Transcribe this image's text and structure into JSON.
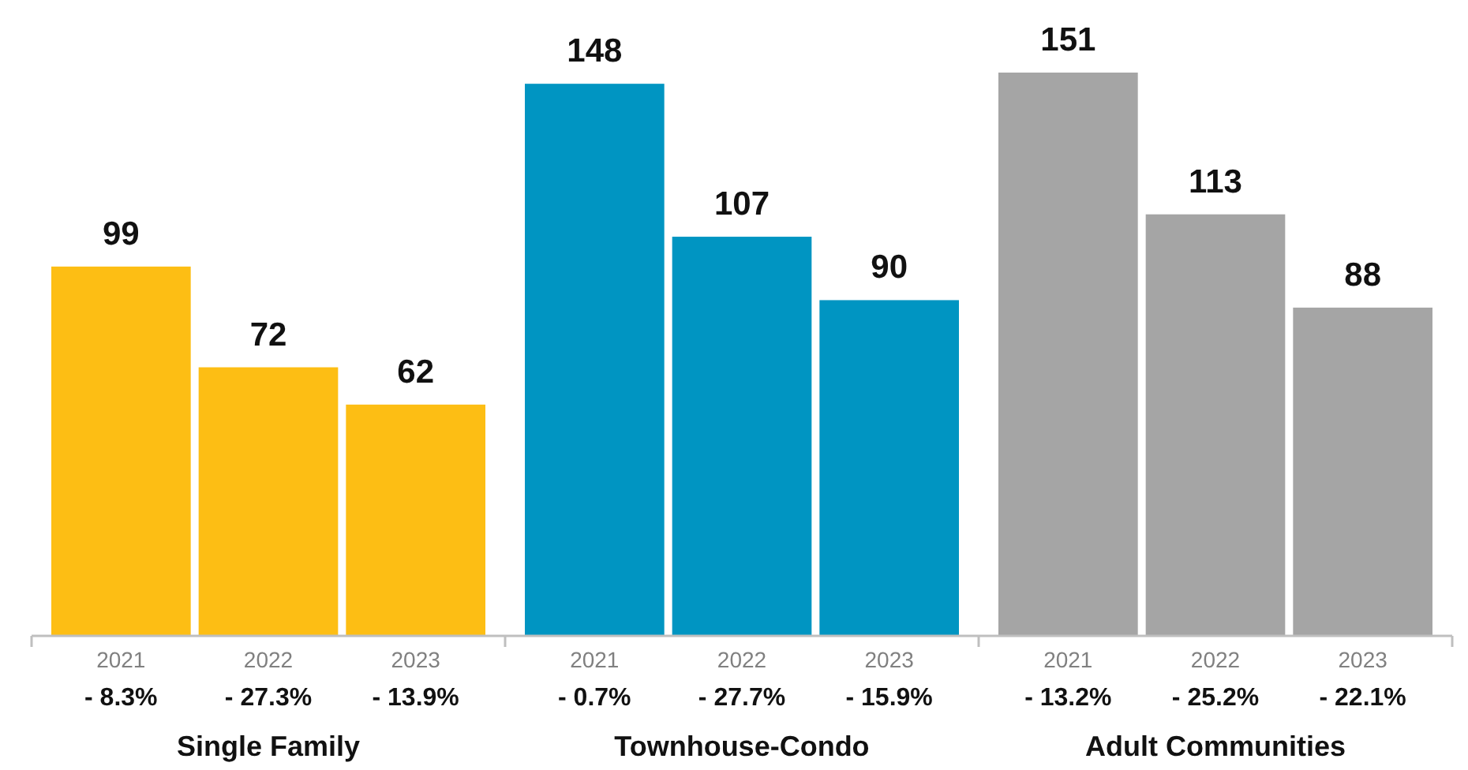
{
  "chart_data": {
    "type": "bar",
    "categories": [
      "2021",
      "2022",
      "2023",
      "2021",
      "2022",
      "2023",
      "2021",
      "2022",
      "2023"
    ],
    "values": [
      99,
      72,
      62,
      148,
      107,
      90,
      151,
      113,
      88
    ],
    "colors": [
      "#fdbe14",
      "#fdbe14",
      "#fdbe14",
      "#0095c2",
      "#0095c2",
      "#0095c2",
      "#a5a5a5",
      "#a5a5a5",
      "#a5a5a5"
    ],
    "data_labels": true,
    "annotations": [
      "- 8.3%",
      "- 27.3%",
      "- 13.9%",
      "- 0.7%",
      "- 27.7%",
      "- 15.9%",
      "- 13.2%",
      "- 25.2%",
      "- 22.1%",
      "Single Family",
      "Townhouse-Condo",
      "Adult Communities"
    ]
  }
}
